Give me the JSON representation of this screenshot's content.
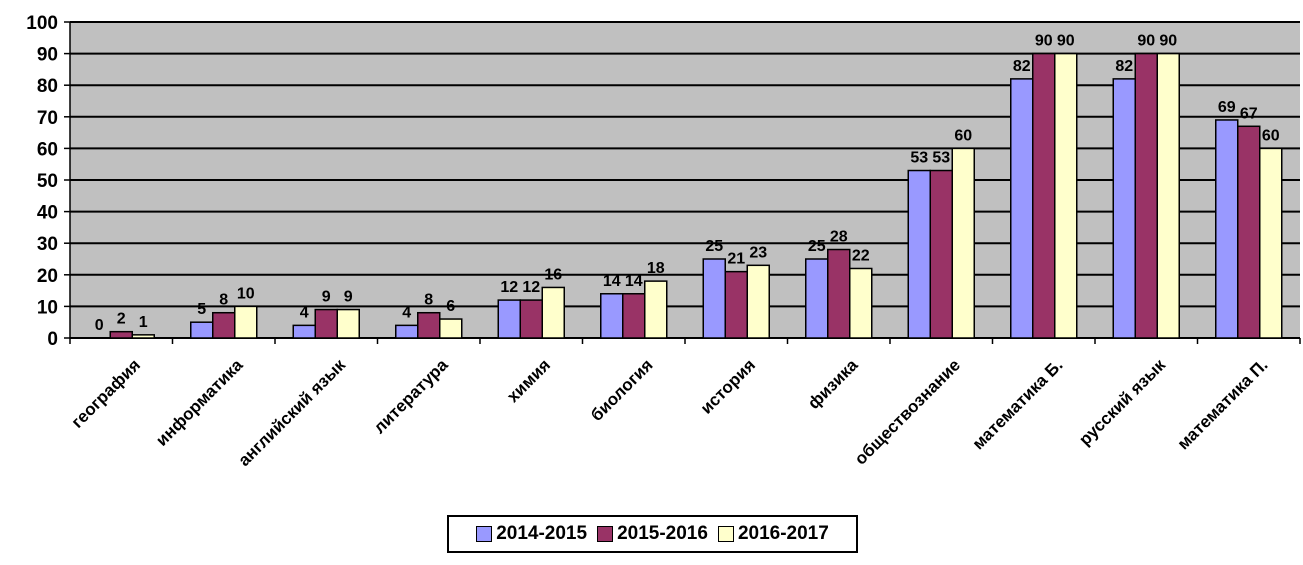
{
  "chart_data": {
    "type": "bar",
    "categories": [
      "география",
      "информатика",
      "английский язык",
      "литература",
      "химия",
      "биология",
      "история",
      "физика",
      "обществознание",
      "математика Б.",
      "русский язык",
      "математика П."
    ],
    "series": [
      {
        "name": "2014-2015",
        "values": [
          0,
          5,
          4,
          4,
          12,
          14,
          25,
          25,
          53,
          82,
          82,
          69
        ],
        "color": "#9999ff"
      },
      {
        "name": "2015-2016",
        "values": [
          2,
          8,
          9,
          8,
          12,
          14,
          21,
          28,
          53,
          90,
          90,
          67
        ],
        "color": "#993366"
      },
      {
        "name": "2016-2017",
        "values": [
          1,
          10,
          9,
          6,
          16,
          18,
          23,
          22,
          60,
          90,
          90,
          60
        ],
        "color": "#ffffcc"
      }
    ],
    "ylim": [
      0,
      100
    ],
    "yticks": [
      0,
      10,
      20,
      30,
      40,
      50,
      60,
      70,
      80,
      90,
      100
    ],
    "grid": true,
    "plot_background": "#c0c0c0",
    "legend_position": "bottom"
  }
}
